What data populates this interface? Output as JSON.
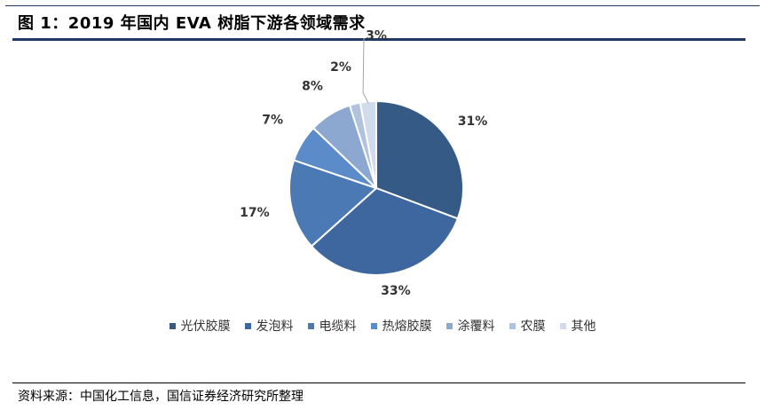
{
  "figure": {
    "title": "图 1：2019 年国内 EVA 树脂下游各领域需求",
    "source": "资料来源：中国化工信息，国信证券经济研究所整理"
  },
  "chart_data": {
    "type": "pie",
    "title": "",
    "categories": [
      "光伏胶膜",
      "发泡料",
      "电缆料",
      "热熔胶膜",
      "涂覆料",
      "农膜",
      "其他"
    ],
    "values": [
      31,
      33,
      17,
      7,
      8,
      2,
      3
    ],
    "labels": [
      "31%",
      "33%",
      "17%",
      "7%",
      "8%",
      "2%",
      "3%"
    ],
    "colors": [
      "#345a85",
      "#3e67a0",
      "#4a79b4",
      "#5b8bc9",
      "#8ca8d1",
      "#b0c2de",
      "#d0dbeb"
    ],
    "start_angle": "12 o'clock",
    "direction": "clockwise",
    "legend_position": "bottom"
  }
}
